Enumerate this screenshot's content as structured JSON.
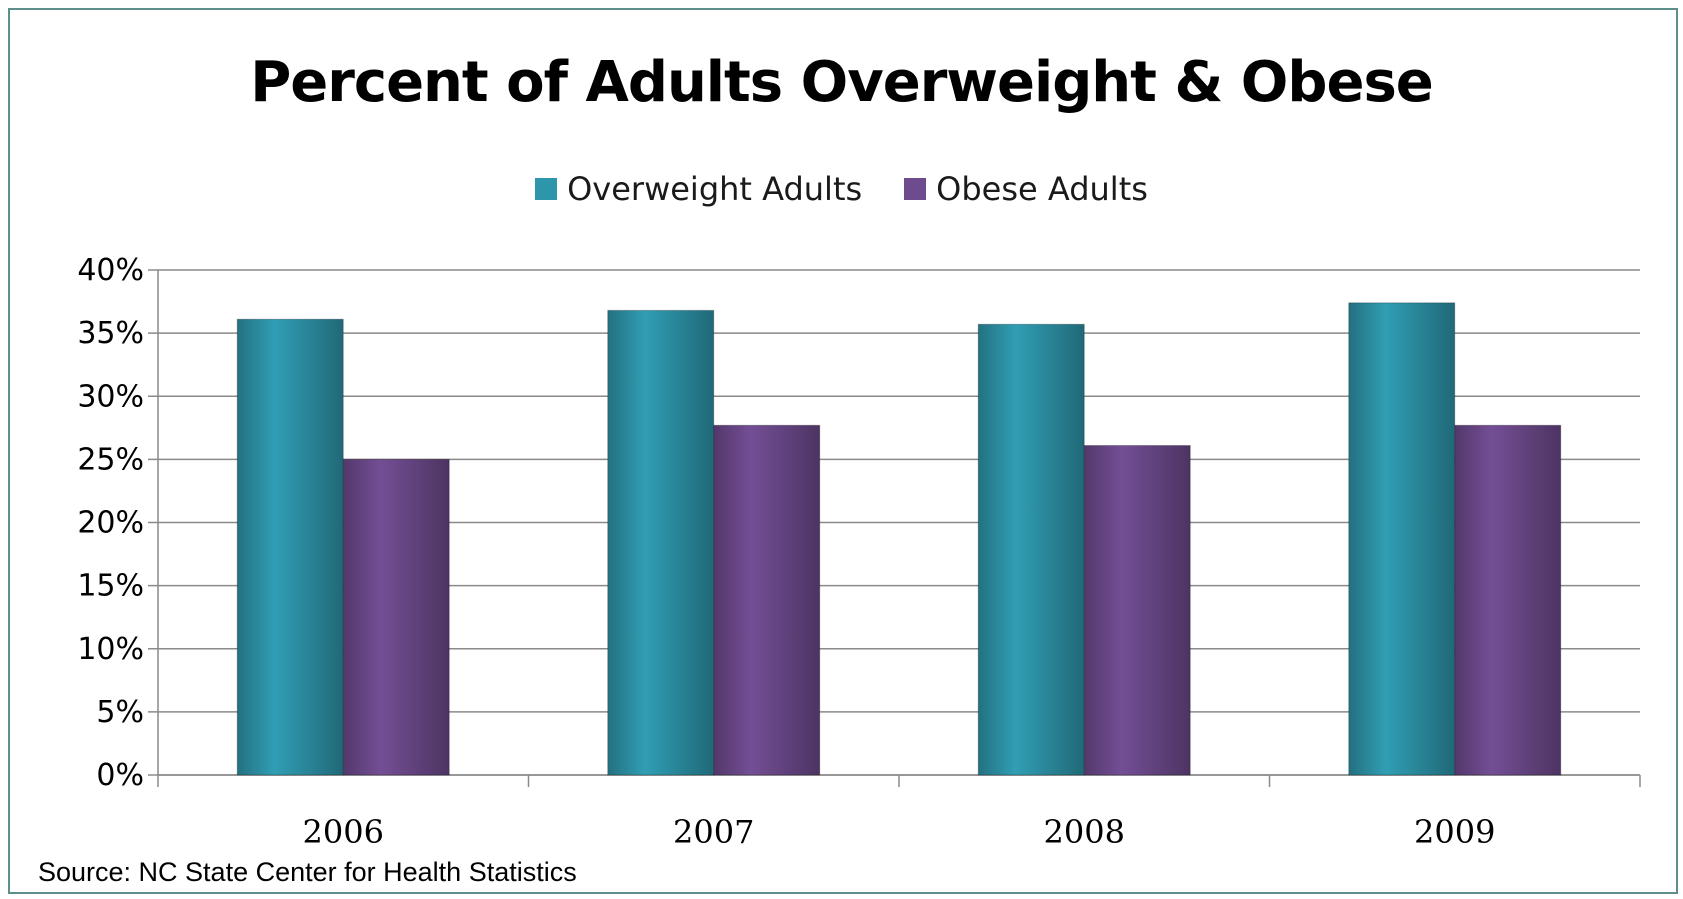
{
  "chart_data": {
    "type": "bar",
    "title": "Percent of Adults Overweight & Obese",
    "categories": [
      "2006",
      "2007",
      "2008",
      "2009"
    ],
    "series": [
      {
        "name": "Overweight Adults",
        "color": "#2e96ab",
        "values": [
          36.1,
          36.8,
          35.7,
          37.4
        ]
      },
      {
        "name": "Obese Adults",
        "color": "#6e4a8e",
        "values": [
          25.0,
          27.7,
          26.1,
          27.7
        ]
      }
    ],
    "ylim": [
      0,
      40
    ],
    "yticks": [
      "0%",
      "5%",
      "10%",
      "15%",
      "20%",
      "25%",
      "30%",
      "35%",
      "40%"
    ],
    "ytick_values": [
      0,
      5,
      10,
      15,
      20,
      25,
      30,
      35,
      40
    ],
    "xlabel": "",
    "ylabel": "",
    "grid": true,
    "legend_position": "top"
  },
  "source": "Source: NC State Center for Health Statistics"
}
